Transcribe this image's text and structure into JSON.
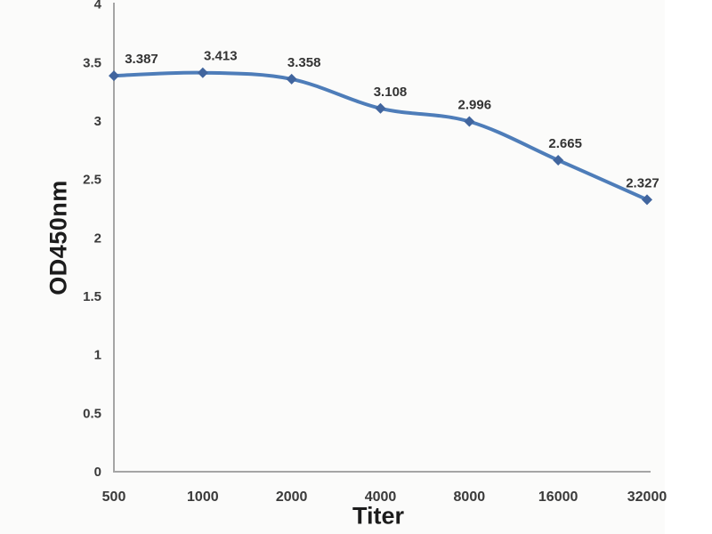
{
  "chart_data": {
    "type": "line",
    "title": "",
    "xlabel": "Titer",
    "ylabel": "OD450nm",
    "categories": [
      "500",
      "1000",
      "2000",
      "4000",
      "8000",
      "16000",
      "32000"
    ],
    "series": [
      {
        "name": "OD450nm",
        "values": [
          3.387,
          3.413,
          3.358,
          3.108,
          2.996,
          2.665,
          2.327
        ]
      }
    ],
    "data_labels": [
      "3.387",
      "3.413",
      "3.358",
      "3.108",
      "2.996",
      "2.665",
      "2.327"
    ],
    "y_ticks": [
      "0",
      "0.5",
      "1",
      "1.5",
      "2",
      "2.5",
      "3",
      "3.5",
      "4"
    ],
    "y_tick_values": [
      0,
      0.5,
      1,
      1.5,
      2,
      2.5,
      3,
      3.5,
      4
    ],
    "ylim": [
      0,
      4
    ],
    "grid": false,
    "legend": "none",
    "marker": "diamond",
    "smooth": true,
    "colors": {
      "line": "#4e7db9",
      "marker": "#41659e",
      "axis": "#a5a5a5",
      "tick_text": "#3a3a3a",
      "label_text": "#333333",
      "background": "#fbfbfa"
    }
  }
}
